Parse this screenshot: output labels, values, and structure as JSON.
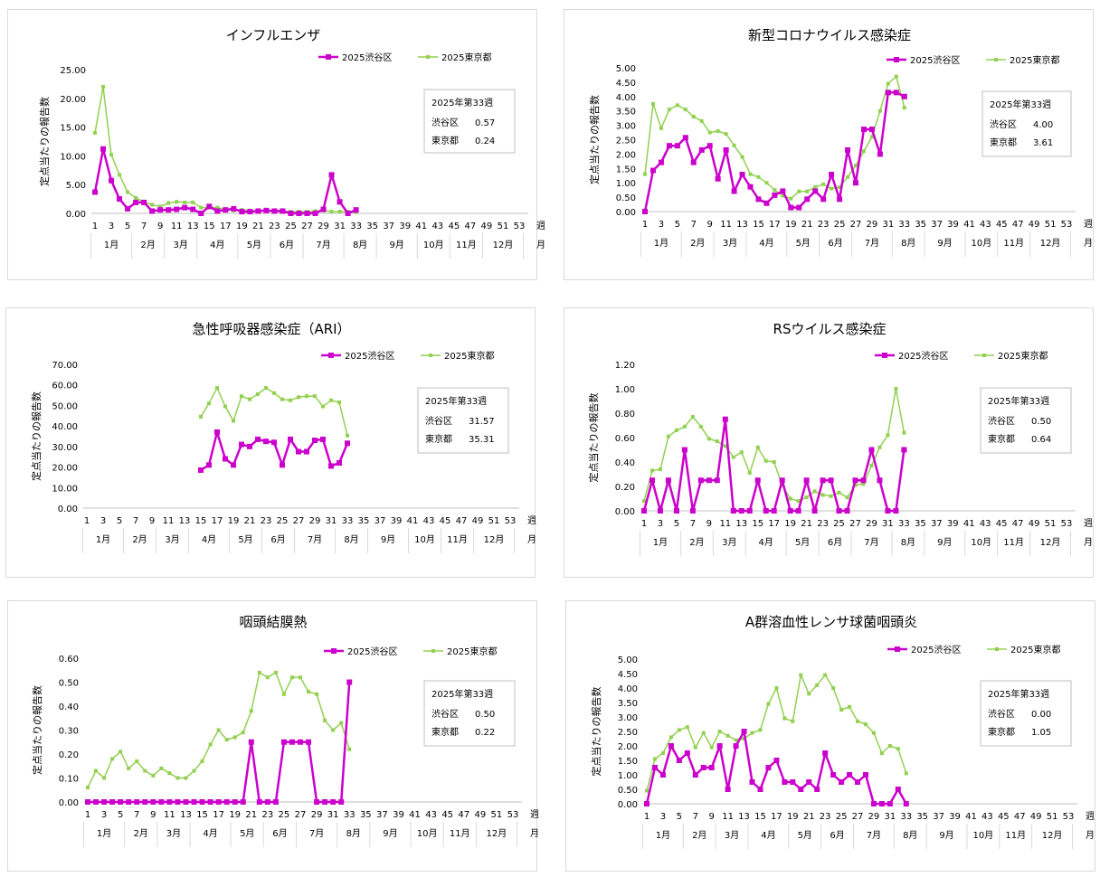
{
  "chart_data": [
    {
      "type": "line",
      "title": "インフルエンザ",
      "ylabel": "定点当たりの報告数",
      "xlabel": "週",
      "month_axis_label": "月",
      "ylim": [
        0,
        25
      ],
      "ytick_step": 5,
      "ytick_labels": [
        "0.00",
        "5.00",
        "10.00",
        "15.00",
        "20.00",
        "25.00"
      ],
      "x_tick_labels": [
        "1",
        "3",
        "5",
        "7",
        "9",
        "11",
        "13",
        "15",
        "17",
        "19",
        "21",
        "23",
        "25",
        "27",
        "29",
        "31",
        "33",
        "35",
        "37",
        "39",
        "41",
        "43",
        "45",
        "47",
        "49",
        "51",
        "53"
      ],
      "month_labels": [
        "1月",
        "2月",
        "3月",
        "4月",
        "5月",
        "6月",
        "7月",
        "8月",
        "9月",
        "10月",
        "11月",
        "12月"
      ],
      "series": [
        {
          "name": "2025渋谷区",
          "color": "#cc00cc",
          "start_week": 1,
          "values": [
            3.7,
            11.2,
            5.7,
            2.5,
            0.8,
            1.9,
            1.9,
            0.4,
            0.6,
            0.6,
            0.7,
            1.0,
            0.7,
            0.0,
            1.2,
            0.4,
            0.6,
            0.8,
            0.3,
            0.3,
            0.4,
            0.5,
            0.4,
            0.4,
            0.0,
            0.0,
            0.0,
            0.0,
            0.7,
            6.7,
            2.0,
            0.0,
            0.6
          ]
        },
        {
          "name": "2025東京都",
          "color": "#92d050",
          "start_week": 1,
          "values": [
            14.0,
            22.0,
            10.2,
            6.7,
            3.7,
            2.7,
            2.0,
            1.5,
            1.2,
            1.8,
            2.0,
            1.9,
            1.9,
            1.0,
            1.0,
            1.0,
            0.7,
            0.5,
            0.6,
            0.5,
            0.4,
            0.4,
            0.3,
            0.3,
            0.3,
            0.3,
            0.3,
            0.4,
            0.5,
            0.3,
            0.3,
            0.3,
            0.2
          ]
        }
      ],
      "summary_box": {
        "title": "2025年第33週",
        "rows": [
          {
            "label": "渋谷区",
            "value": "0.57"
          },
          {
            "label": "東京都",
            "value": "0.24"
          }
        ]
      }
    },
    {
      "type": "line",
      "title": "新型コロナウイルス感染症",
      "ylabel": "定点当たりの報告数",
      "xlabel": "週",
      "month_axis_label": "月",
      "ylim": [
        0,
        5
      ],
      "ytick_step": 0.5,
      "ytick_labels": [
        "0.00",
        "0.50",
        "1.00",
        "1.50",
        "2.00",
        "2.50",
        "3.00",
        "3.50",
        "4.00",
        "4.50",
        "5.00"
      ],
      "x_tick_labels": [
        "1",
        "3",
        "5",
        "7",
        "9",
        "11",
        "13",
        "15",
        "17",
        "19",
        "21",
        "23",
        "25",
        "27",
        "29",
        "31",
        "33",
        "35",
        "37",
        "39",
        "41",
        "43",
        "45",
        "47",
        "49",
        "51",
        "53"
      ],
      "month_labels": [
        "1月",
        "2月",
        "3月",
        "4月",
        "5月",
        "6月",
        "7月",
        "8月",
        "9月",
        "10月",
        "11月",
        "12月"
      ],
      "series": [
        {
          "name": "2025渋谷区",
          "color": "#cc00cc",
          "start_week": 1,
          "values": [
            0.0,
            1.43,
            1.71,
            2.29,
            2.29,
            2.57,
            1.71,
            2.14,
            2.29,
            1.14,
            2.14,
            0.71,
            1.29,
            0.86,
            0.43,
            0.29,
            0.57,
            0.71,
            0.14,
            0.14,
            0.43,
            0.71,
            0.43,
            1.29,
            0.43,
            2.14,
            1.0,
            2.86,
            2.86,
            2.0,
            4.14,
            4.14,
            4.0
          ]
        },
        {
          "name": "2025東京都",
          "color": "#92d050",
          "start_week": 1,
          "values": [
            1.3,
            3.75,
            2.9,
            3.55,
            3.7,
            3.55,
            3.3,
            3.15,
            2.75,
            2.8,
            2.7,
            2.3,
            1.9,
            1.3,
            1.2,
            1.0,
            0.75,
            0.55,
            0.45,
            0.7,
            0.7,
            0.85,
            0.95,
            0.8,
            0.85,
            1.2,
            1.6,
            2.1,
            2.6,
            3.5,
            4.45,
            4.7,
            3.61
          ]
        }
      ],
      "summary_box": {
        "title": "2025年第33週",
        "rows": [
          {
            "label": "渋谷区",
            "value": "4.00"
          },
          {
            "label": "東京都",
            "value": "3.61"
          }
        ]
      }
    },
    {
      "type": "line",
      "title": "急性呼吸器感染症（ARI）",
      "ylabel": "定点当たりの報告数",
      "xlabel": "週",
      "month_axis_label": "月",
      "ylim": [
        0,
        70
      ],
      "ytick_step": 10,
      "ytick_labels": [
        "0.00",
        "10.00",
        "20.00",
        "30.00",
        "40.00",
        "50.00",
        "60.00",
        "70.00"
      ],
      "x_tick_labels": [
        "1",
        "3",
        "5",
        "7",
        "9",
        "11",
        "13",
        "15",
        "17",
        "19",
        "21",
        "23",
        "25",
        "27",
        "29",
        "31",
        "33",
        "35",
        "37",
        "39",
        "41",
        "43",
        "45",
        "47",
        "49",
        "51",
        "53"
      ],
      "month_labels": [
        "1月",
        "2月",
        "3月",
        "4月",
        "5月",
        "6月",
        "7月",
        "8月",
        "9月",
        "10月",
        "11月",
        "12月"
      ],
      "series": [
        {
          "name": "2025渋谷区",
          "color": "#cc00cc",
          "start_week": 15,
          "values": [
            18.5,
            21.0,
            37.0,
            24.0,
            21.0,
            31.0,
            30.0,
            33.5,
            32.5,
            32.0,
            21.0,
            33.5,
            27.5,
            27.5,
            33.0,
            33.5,
            20.5,
            22.0,
            31.57
          ]
        },
        {
          "name": "2025東京都",
          "color": "#92d050",
          "start_week": 15,
          "values": [
            44.5,
            51.0,
            58.5,
            49.5,
            42.5,
            54.5,
            53.0,
            55.5,
            58.5,
            56.0,
            53.0,
            52.5,
            54.0,
            54.5,
            54.5,
            49.5,
            52.5,
            51.5,
            35.31
          ]
        }
      ],
      "summary_box": {
        "title": "2025年第33週",
        "rows": [
          {
            "label": "渋谷区",
            "value": "31.57"
          },
          {
            "label": "東京都",
            "value": "35.31"
          }
        ]
      }
    },
    {
      "type": "line",
      "title": "RSウイルス感染症",
      "ylabel": "定点当たりの報告数",
      "xlabel": "週",
      "month_axis_label": "月",
      "ylim": [
        0,
        1.2
      ],
      "ytick_step": 0.2,
      "ytick_labels": [
        "0.00",
        "0.20",
        "0.40",
        "0.60",
        "0.80",
        "1.00",
        "1.20"
      ],
      "x_tick_labels": [
        "1",
        "3",
        "5",
        "7",
        "9",
        "11",
        "13",
        "15",
        "17",
        "19",
        "21",
        "23",
        "25",
        "27",
        "29",
        "31",
        "33",
        "35",
        "37",
        "39",
        "41",
        "43",
        "45",
        "47",
        "49",
        "51",
        "53"
      ],
      "month_labels": [
        "1月",
        "2月",
        "3月",
        "4月",
        "5月",
        "6月",
        "7月",
        "8月",
        "9月",
        "10月",
        "11月",
        "12月"
      ],
      "series": [
        {
          "name": "2025渋谷区",
          "color": "#cc00cc",
          "start_week": 1,
          "values": [
            0.0,
            0.25,
            0.0,
            0.25,
            0.0,
            0.5,
            0.0,
            0.25,
            0.25,
            0.25,
            0.75,
            0.0,
            0.0,
            0.0,
            0.25,
            0.0,
            0.0,
            0.25,
            0.0,
            0.0,
            0.25,
            0.0,
            0.25,
            0.25,
            0.0,
            0.0,
            0.25,
            0.25,
            0.5,
            0.25,
            0.0,
            0.0,
            0.5
          ]
        },
        {
          "name": "2025東京都",
          "color": "#92d050",
          "start_week": 1,
          "values": [
            0.08,
            0.33,
            0.34,
            0.61,
            0.66,
            0.69,
            0.77,
            0.69,
            0.59,
            0.57,
            0.53,
            0.44,
            0.48,
            0.31,
            0.52,
            0.41,
            0.4,
            0.21,
            0.1,
            0.08,
            0.11,
            0.16,
            0.13,
            0.12,
            0.15,
            0.11,
            0.21,
            0.22,
            0.37,
            0.52,
            0.62,
            1.0,
            0.64
          ]
        }
      ],
      "summary_box": {
        "title": "2025年第33週",
        "rows": [
          {
            "label": "渋谷区",
            "value": "0.50"
          },
          {
            "label": "東京都",
            "value": "0.64"
          }
        ]
      }
    },
    {
      "type": "line",
      "title": "咽頭結膜熱",
      "ylabel": "定点当たりの報告数",
      "xlabel": "週",
      "month_axis_label": "月",
      "ylim": [
        0,
        0.6
      ],
      "ytick_step": 0.1,
      "ytick_labels": [
        "0.00",
        "0.10",
        "0.20",
        "0.30",
        "0.40",
        "0.50",
        "0.60"
      ],
      "x_tick_labels": [
        "1",
        "3",
        "5",
        "7",
        "9",
        "11",
        "13",
        "15",
        "17",
        "19",
        "21",
        "23",
        "25",
        "27",
        "29",
        "31",
        "33",
        "35",
        "37",
        "39",
        "41",
        "43",
        "45",
        "47",
        "49",
        "51",
        "53"
      ],
      "month_labels": [
        "1月",
        "2月",
        "3月",
        "4月",
        "5月",
        "6月",
        "7月",
        "8月",
        "9月",
        "10月",
        "11月",
        "12月"
      ],
      "series": [
        {
          "name": "2025渋谷区",
          "color": "#cc00cc",
          "start_week": 1,
          "values": [
            0,
            0,
            0,
            0,
            0,
            0,
            0,
            0,
            0,
            0,
            0,
            0,
            0,
            0,
            0,
            0,
            0,
            0,
            0,
            0,
            0.25,
            0,
            0,
            0,
            0.25,
            0.25,
            0.25,
            0.25,
            0,
            0,
            0,
            0,
            0.5
          ]
        },
        {
          "name": "2025東京都",
          "color": "#92d050",
          "start_week": 1,
          "values": [
            0.06,
            0.13,
            0.1,
            0.18,
            0.21,
            0.14,
            0.17,
            0.13,
            0.11,
            0.14,
            0.12,
            0.1,
            0.1,
            0.13,
            0.17,
            0.24,
            0.3,
            0.26,
            0.27,
            0.29,
            0.38,
            0.54,
            0.52,
            0.54,
            0.45,
            0.52,
            0.52,
            0.46,
            0.45,
            0.34,
            0.3,
            0.33,
            0.22
          ]
        }
      ],
      "summary_box": {
        "title": "2025年第33週",
        "rows": [
          {
            "label": "渋谷区",
            "value": "0.50"
          },
          {
            "label": "東京都",
            "value": "0.22"
          }
        ]
      }
    },
    {
      "type": "line",
      "title": "A群溶血性レンサ球菌咽頭炎",
      "ylabel": "定点当たりの報告数",
      "xlabel": "週",
      "month_axis_label": "月",
      "ylim": [
        0,
        5
      ],
      "ytick_step": 0.5,
      "ytick_labels": [
        "0.00",
        "0.50",
        "1.00",
        "1.50",
        "2.00",
        "2.50",
        "3.00",
        "3.50",
        "4.00",
        "4.50",
        "5.00"
      ],
      "x_tick_labels": [
        "1",
        "3",
        "5",
        "7",
        "9",
        "11",
        "13",
        "15",
        "17",
        "19",
        "21",
        "23",
        "25",
        "27",
        "29",
        "31",
        "33",
        "35",
        "37",
        "39",
        "41",
        "43",
        "45",
        "47",
        "49",
        "51",
        "53"
      ],
      "month_labels": [
        "1月",
        "2月",
        "3月",
        "4月",
        "5月",
        "6月",
        "7月",
        "8月",
        "9月",
        "10月",
        "11月",
        "12月"
      ],
      "series": [
        {
          "name": "2025渋谷区",
          "color": "#cc00cc",
          "start_week": 1,
          "values": [
            0.0,
            1.25,
            1.0,
            2.0,
            1.5,
            1.75,
            1.0,
            1.25,
            1.25,
            2.0,
            0.5,
            2.0,
            2.5,
            0.75,
            0.5,
            1.25,
            1.5,
            0.75,
            0.75,
            0.5,
            0.75,
            0.5,
            1.75,
            1.0,
            0.75,
            1.0,
            0.75,
            1.0,
            0.0,
            0.0,
            0.0,
            0.5,
            0.0
          ]
        },
        {
          "name": "2025東京都",
          "color": "#92d050",
          "start_week": 1,
          "values": [
            0.45,
            1.55,
            1.75,
            2.3,
            2.55,
            2.65,
            1.95,
            2.45,
            1.95,
            2.5,
            2.35,
            2.2,
            2.25,
            2.45,
            2.55,
            3.45,
            4.0,
            2.95,
            2.85,
            4.45,
            3.8,
            4.1,
            4.45,
            4.0,
            3.25,
            3.35,
            2.85,
            2.75,
            2.45,
            1.75,
            2.0,
            1.9,
            1.05
          ]
        }
      ],
      "summary_box": {
        "title": "2025年第33週",
        "rows": [
          {
            "label": "渋谷区",
            "value": "0.00"
          },
          {
            "label": "東京都",
            "value": "1.05"
          }
        ]
      }
    }
  ]
}
